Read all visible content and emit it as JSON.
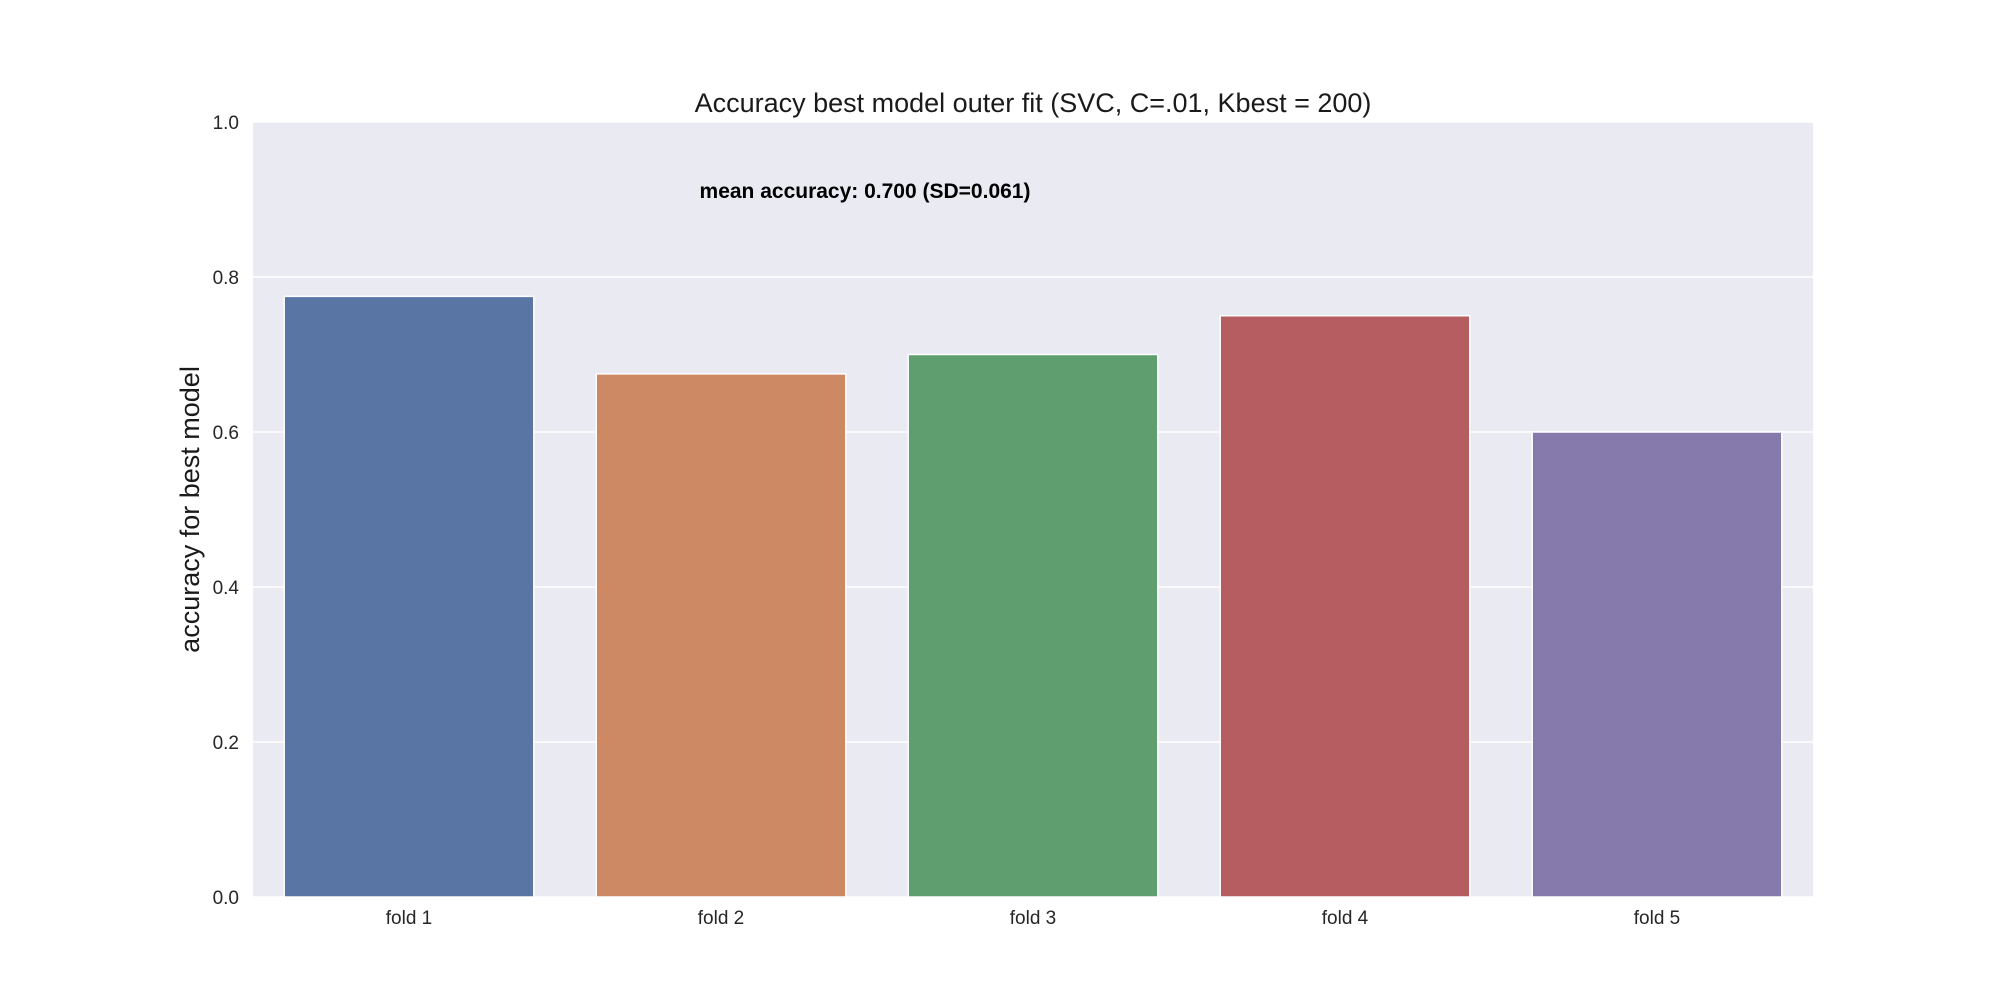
{
  "chart_data": {
    "type": "bar",
    "title": "Accuracy best model outer fit (SVC, C=.01, Kbest = 200)",
    "xlabel": "",
    "ylabel": "accuracy for best model",
    "categories": [
      "fold 1",
      "fold 2",
      "fold 3",
      "fold 4",
      "fold 5"
    ],
    "values": [
      0.775,
      0.675,
      0.7,
      0.75,
      0.6
    ],
    "colors": [
      "#5875a4",
      "#cc8963",
      "#5f9e6e",
      "#b55d60",
      "#857aab"
    ],
    "ylim": [
      0,
      1.0
    ],
    "yticks": [
      "0.0",
      "0.2",
      "0.4",
      "0.6",
      "0.8",
      "1.0"
    ],
    "grid": true,
    "background": "#eaeaf2",
    "annotation": "mean accuracy: 0.700 (SD=0.061)"
  }
}
